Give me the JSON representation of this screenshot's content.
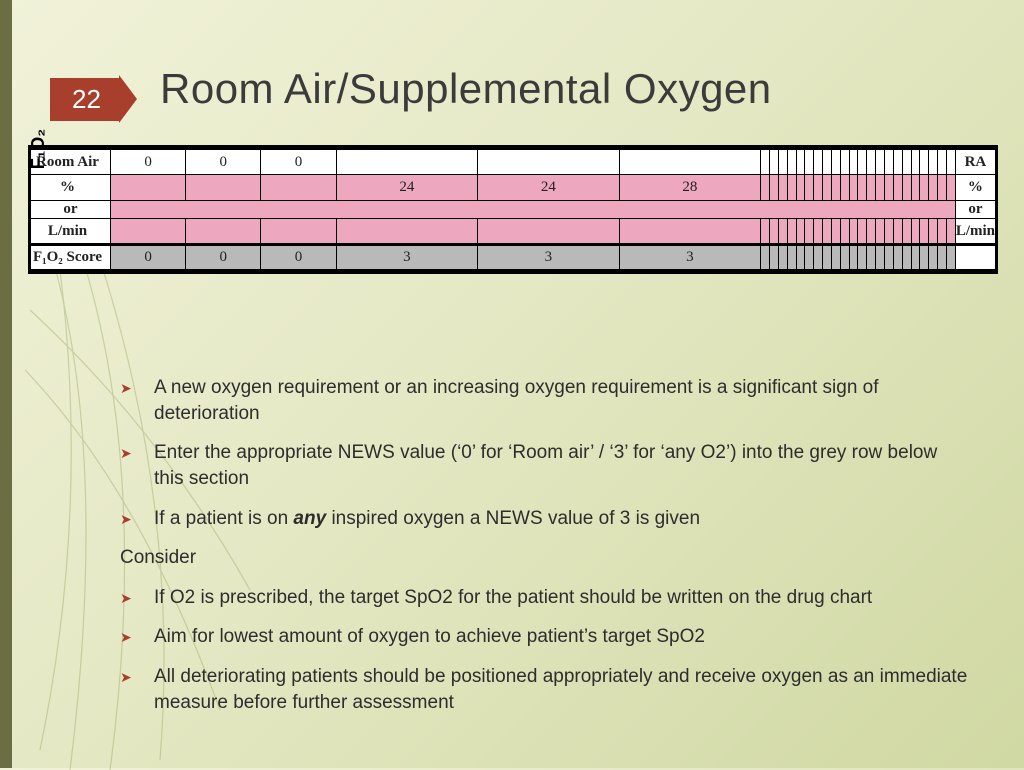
{
  "slide": {
    "number": "22",
    "title": "Room Air/Supplemental Oxygen"
  },
  "chart": {
    "columns": 28,
    "left_group_label": "F₁O₂",
    "rows": [
      {
        "key": "room_air",
        "left": "Room Air",
        "right": "RA",
        "bg": "white",
        "values": [
          "0",
          "0",
          "0",
          "",
          "",
          "",
          "",
          "",
          "",
          "",
          "",
          "",
          "",
          "",
          "",
          "",
          "",
          "",
          "",
          "",
          "",
          "",
          "",
          "",
          "",
          "",
          "",
          ""
        ]
      },
      {
        "key": "percent",
        "left": "%",
        "right": "%",
        "bg": "pink",
        "values": [
          "",
          "",
          "",
          "24",
          "24",
          "28",
          "",
          "",
          "",
          "",
          "",
          "",
          "",
          "",
          "",
          "",
          "",
          "",
          "",
          "",
          "",
          "",
          "",
          "",
          "",
          "",
          "",
          ""
        ]
      },
      {
        "key": "or",
        "left": "or",
        "right": "or",
        "spacer": true
      },
      {
        "key": "lmin",
        "left": "L/min",
        "right": "L/min",
        "bg": "pink",
        "values": [
          "",
          "",
          "",
          "",
          "",
          "",
          "",
          "",
          "",
          "",
          "",
          "",
          "",
          "",
          "",
          "",
          "",
          "",
          "",
          "",
          "",
          "",
          "",
          "",
          "",
          "",
          "",
          ""
        ]
      },
      {
        "key": "score",
        "left": "F₁O₂ Score",
        "right": "",
        "bg": "grey",
        "values": [
          "0",
          "0",
          "0",
          "3",
          "3",
          "3",
          "",
          "",
          "",
          "",
          "",
          "",
          "",
          "",
          "",
          "",
          "",
          "",
          "",
          "",
          "",
          "",
          "",
          "",
          "",
          "",
          "",
          ""
        ]
      }
    ],
    "colors": {
      "pink": "#eda7bf",
      "grey": "#b9b9b9",
      "white": "#ffffff",
      "border": "#000000"
    }
  },
  "bullets": {
    "group1": [
      "A new oxygen requirement or an increasing oxygen requirement is a significant sign of deterioration",
      "Enter the appropriate NEWS value (‘0’ for ‘Room air’ / ‘3’ for ‘any O2’) into the grey row below this section",
      "If a patient is on |any| inspired oxygen a NEWS value of 3 is given"
    ],
    "consider_label": "Consider",
    "group2": [
      "If O2 is prescribed, the target SpO2 for the patient should be written on the drug chart",
      "Aim for lowest amount of oxygen to achieve patient’s target SpO2",
      "All deteriorating patients should be positioned appropriately and receive oxygen as an immediate measure before further assessment"
    ]
  },
  "deco": {
    "stroke": "#889a4f"
  }
}
